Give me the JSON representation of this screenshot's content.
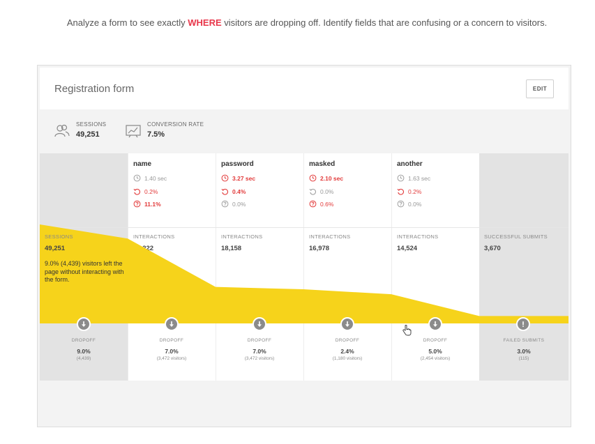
{
  "intro": {
    "before": "Analyze a form to see exactly ",
    "highlight": "WHERE",
    "after": " visitors are dropping off. Identify fields that are confusing or a concern to visitors."
  },
  "form": {
    "title": "Registration form",
    "edit_label": "EDIT",
    "sessions_label": "SESSIONS",
    "sessions_value": "49,251",
    "conversion_label": "CONVERSION RATE",
    "conversion_value": "7.5%"
  },
  "fields": [
    {
      "name": "name",
      "time": "1.40 sec",
      "refill": "0.2%",
      "blank": "11.1%",
      "time_red": false,
      "refill_red": true,
      "blank_red": true,
      "interactions_label": "INTERACTIONS",
      "interactions": "42,222",
      "dropoff_label": "DROPOFF",
      "dropoff": "7.0%",
      "dropoff_sub": "(3,472 visitors)"
    },
    {
      "name": "password",
      "time": "3.27 sec",
      "refill": "0.4%",
      "blank": "0.0%",
      "time_red": true,
      "refill_red": true,
      "blank_red": false,
      "interactions_label": "INTERACTIONS",
      "interactions": "18,158",
      "dropoff_label": "DROPOFF",
      "dropoff": "7.0%",
      "dropoff_sub": "(3,472 visitors)"
    },
    {
      "name": "masked",
      "time": "2.10 sec",
      "refill": "0.0%",
      "blank": "0.6%",
      "time_red": true,
      "refill_red": false,
      "blank_red": true,
      "interactions_label": "INTERACTIONS",
      "interactions": "16,978",
      "dropoff_label": "DROPOFF",
      "dropoff": "2.4%",
      "dropoff_sub": "(1,180 visitors)"
    },
    {
      "name": "another",
      "time": "1.63 sec",
      "refill": "0.2%",
      "blank": "0.0%",
      "time_red": false,
      "refill_red": true,
      "blank_red": false,
      "interactions_label": "INTERACTIONS",
      "interactions": "14,524",
      "dropoff_label": "DROPOFF",
      "dropoff": "5.0%",
      "dropoff_sub": "(2,454 visitors)"
    }
  ],
  "start": {
    "label": "SESSIONS",
    "value": "49,251",
    "note": "9.0% (4,439) visitors left the page without interacting with the form.",
    "dropoff_label": "DROPOFF",
    "dropoff": "9.0%",
    "dropoff_sub": "(4,439)"
  },
  "end": {
    "label": "SUCCESSFUL SUBMITS",
    "value": "3,670",
    "failed_label": "FAILED SUBMITS",
    "failed": "3.0%",
    "failed_sub": "(115)"
  },
  "funnel_values": [
    49251,
    42222,
    18158,
    16978,
    14524,
    3670
  ],
  "colors": {
    "funnel": "#f6d31b",
    "alert": "#e23a3a",
    "dropoff_circle": "#8b8b8b"
  }
}
